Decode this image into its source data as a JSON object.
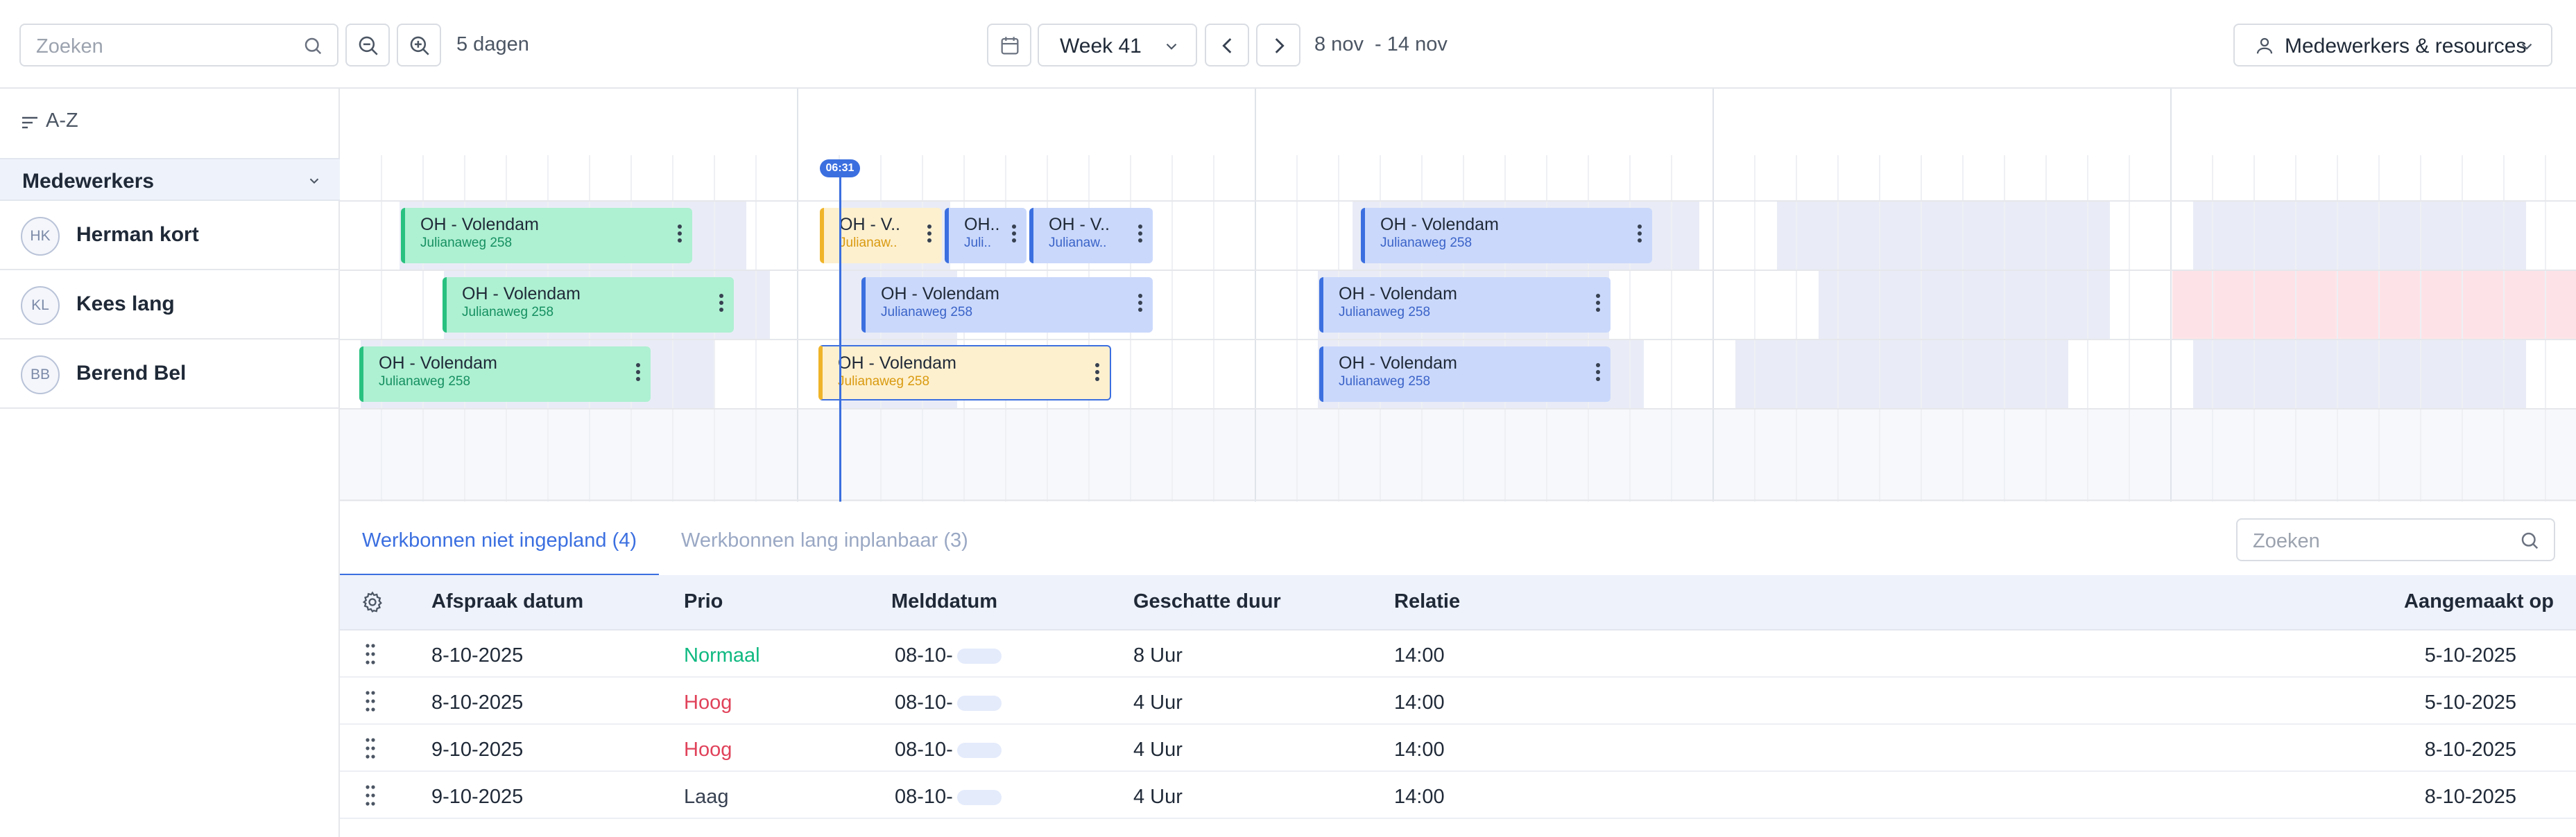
{
  "toolbar": {
    "search_placeholder": "Zoeken",
    "days_label": "5 dagen",
    "week_label": "Week 41",
    "date_range": "8 nov  - 14 nov",
    "resources_label": "Medewerkers & resources"
  },
  "sidebar": {
    "sort_label": "A-Z",
    "group_label": "Medewerkers",
    "employees": [
      {
        "initials": "HK",
        "name": "Herman kort"
      },
      {
        "initials": "KL",
        "name": "Kees lang"
      },
      {
        "initials": "BB",
        "name": "Berend Bel"
      }
    ]
  },
  "timeline": {
    "now_label": "06:31",
    "events": [
      {
        "title": "OH - Volendam",
        "subtitle": "Julianaweg 258"
      },
      {
        "title": "OH - V..",
        "subtitle": "Julianaw.."
      },
      {
        "title": "OH..",
        "subtitle": "Juli.."
      },
      {
        "title": "OH - V..",
        "subtitle": "Julianaw.."
      },
      {
        "title": "OH - Volendam",
        "subtitle": "Julianaweg 258"
      }
    ]
  },
  "bottom": {
    "tabs": [
      {
        "label": "Werkbonnen niet ingepland (4)"
      },
      {
        "label": "Werkbonnen lang inplanbaar (3)"
      }
    ],
    "search_placeholder": "Zoeken"
  },
  "table": {
    "columns": [
      "Afspraak datum",
      "Prio",
      "Melddatum",
      "Geschatte duur",
      "Relatie",
      "Aangemaakt op"
    ],
    "rows": [
      {
        "afspraak": "8-10-2025",
        "prio": "Normaal",
        "melddatum": "08-10-",
        "duur": "8 Uur",
        "relatie": "14:00",
        "aangemaakt": "5-10-2025"
      },
      {
        "afspraak": "8-10-2025",
        "prio": "Hoog",
        "melddatum": "08-10-",
        "duur": "4 Uur",
        "relatie": "14:00",
        "aangemaakt": "5-10-2025"
      },
      {
        "afspraak": "9-10-2025",
        "prio": "Hoog",
        "melddatum": "08-10-",
        "duur": "4 Uur",
        "relatie": "14:00",
        "aangemaakt": "8-10-2025"
      },
      {
        "afspraak": "9-10-2025",
        "prio": "Laag",
        "melddatum": "08-10-",
        "duur": "4 Uur",
        "relatie": "14:00",
        "aangemaakt": "8-10-2025"
      }
    ]
  },
  "colors": {
    "accent": "#3b6fe0",
    "prio_normaal": "#10b981",
    "prio_hoog": "#e0425a",
    "prio_laag": "#374151",
    "event_green": "#aef0d2",
    "event_blue": "#cad8fb",
    "event_yellow": "#fdf0cf",
    "blocked_red": "#fde3e7"
  }
}
